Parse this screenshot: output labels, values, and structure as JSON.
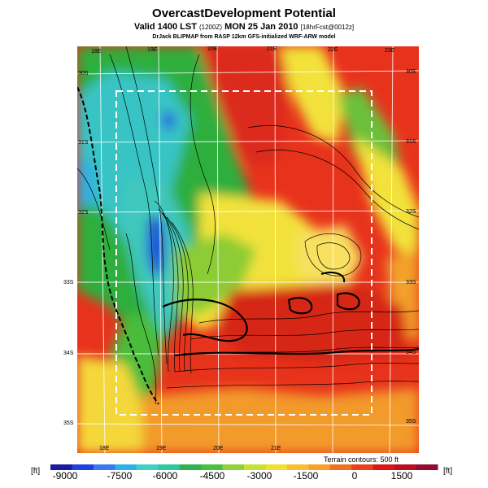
{
  "title": "OvercastDevelopment Potential",
  "subtitle": {
    "prefix": "Valid 1400 LST",
    "utc": "(1200Z)",
    "date": "MON 25 Jan 2010",
    "forecast": "[18hrFcst@0012z]"
  },
  "source_line": "DrJack BLIPMAP from RASP 12km GFS-initialized WRF-ARW model",
  "terrain_note": "Terrain contours: 500 ft",
  "map": {
    "top_lon_labels": [
      "18E",
      "19E",
      "20E",
      "21E",
      "22E",
      "23E"
    ],
    "bottom_lon_labels": [
      "18E",
      "19E",
      "20E",
      "21E"
    ],
    "left_lat_labels": [
      "30S",
      "31S",
      "32S",
      "33S",
      "34S",
      "35S"
    ],
    "right_lat_labels": [
      "30S",
      "31S",
      "32S",
      "33S",
      "34S",
      "35S"
    ],
    "colors": {
      "deep_blue": "#1f3fd8",
      "cyan": "#37c4c4",
      "green": "#2fae3c",
      "yellow": "#f2e23a",
      "orange": "#f2a12a",
      "red": "#e8331c",
      "dark_red": "#c01818"
    }
  },
  "colorbar": {
    "unit_left": "[ft]",
    "unit_right": "[ft]",
    "labels": [
      "-9000",
      "-7500",
      "-6000",
      "-4500",
      "-3000",
      "-1500",
      "0",
      "1500"
    ],
    "colors": [
      "#1a1aa0",
      "#2040e0",
      "#3a78f0",
      "#30b0e8",
      "#40d0c8",
      "#30c8a0",
      "#30b050",
      "#48c040",
      "#90d038",
      "#c8e030",
      "#f0e030",
      "#f8c030",
      "#f8a028",
      "#f07020",
      "#e84018",
      "#d81818",
      "#b81020",
      "#900c30"
    ]
  }
}
